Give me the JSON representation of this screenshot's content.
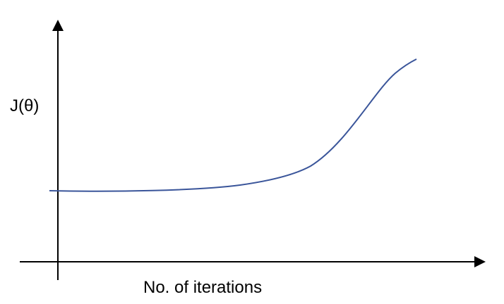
{
  "diagram": {
    "y_axis_label": "J(θ)",
    "x_axis_label": "No. of iterations",
    "curve_color": "#3a559a",
    "axis_color": "#000000",
    "curve_shape": "flat then rising steeply (divergent cost curve)"
  }
}
